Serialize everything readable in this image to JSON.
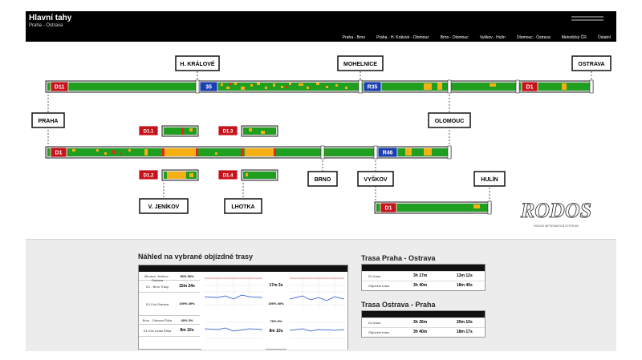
{
  "header": {
    "title": "Hlavní tahy",
    "subtitle": "Praha - Ostrava",
    "date": "",
    "nav": [
      "Praha - Brno",
      "Praha - H. Králové - Olomouc",
      "Brno - Olomouc",
      "Vyškov - Hulín",
      "Olomouc - Ostrava",
      "Metodický ČR",
      "Ostatní"
    ]
  },
  "cities": {
    "praha": "PRAHA",
    "hkralove": "H. KRÁLOVÉ",
    "mohelnice": "MOHELNICE",
    "ostrava": "OSTRAVA",
    "olomouc": "OLOMOUC",
    "brno": "BRNO",
    "vyskov": "VYŠKOV",
    "hulin": "HULÍN",
    "vjenikov": "V. JENÍKOV",
    "lhotka": "LHOTKA"
  },
  "roads": {
    "d11": "D11",
    "r35": "35",
    "r35b": "R35",
    "d1_top": "D1",
    "d1_mid": "D1",
    "r46": "R46",
    "d1_hulin": "D1",
    "d1_1": "D1.1",
    "d1_2": "D1.2",
    "d1_3": "D1.3",
    "d1_4": "D1.4"
  },
  "logo": {
    "text": "RODOS",
    "tagline": "RODOS INFORMATION SYSTEMS"
  },
  "lower": {
    "left_title": "Náhled na vybrané objízdné trasy",
    "right_title1": "Trasa Praha - Ostrava",
    "right_title2": "Trasa Ostrava - Praha",
    "left_rows": [
      {
        "label": "Mirošov, Jenikov - Ostrava",
        "value": "50% 30%"
      },
      {
        "label": "D1 - Brno Trasy",
        "value": "15m 24s"
      },
      {
        "label": "D1 Exit Ostrava",
        "value": "100% 40%"
      },
      {
        "label": "Brno - Ostrava Šířka",
        "value": "40% 2%"
      },
      {
        "label": "D1 Exit Lhota Šířka",
        "value": "8m 10s"
      }
    ],
    "left_mid": [
      {
        "value": "17m 3s"
      },
      {
        "value": "100% 40%"
      },
      {
        "value": "70% 6%"
      },
      {
        "value": "8m 10s"
      }
    ],
    "trasa1_rows": [
      {
        "name": "D1 trasa",
        "time": "3h 17m",
        "alt": "13m 12s"
      },
      {
        "name": "Objízdná trasa",
        "time": "3h 40m",
        "alt": "18m 40s"
      }
    ],
    "trasa2_rows": [
      {
        "name": "D1 trasa",
        "time": "3h 26m",
        "alt": "20m 10s"
      },
      {
        "name": "Objízdná trasa",
        "time": "3h 40m",
        "alt": "18m 17s"
      }
    ]
  },
  "colors": {
    "free": "#1f9e1f",
    "slow": "#f5b015",
    "jam": "#e0281e",
    "road_badge_red": "#c8121b",
    "road_badge_blue": "#1c3fb0"
  }
}
